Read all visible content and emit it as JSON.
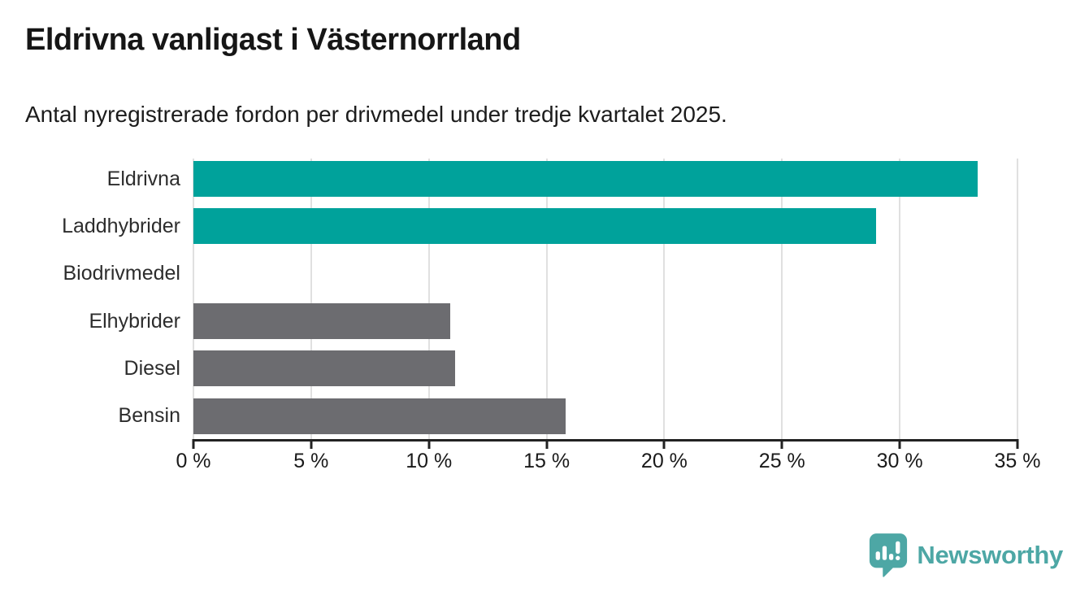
{
  "header": {
    "title": "Eldrivna vanligast i Västernorrland",
    "subtitle": "Antal nyregistrerade fordon per drivmedel under tredje kvartalet 2025."
  },
  "chart_data": {
    "type": "bar",
    "orientation": "horizontal",
    "title": "Eldrivna vanligast i Västernorrland",
    "subtitle": "Antal nyregistrerade fordon per drivmedel under tredje kvartalet 2025.",
    "categories": [
      "Eldrivna",
      "Laddhybrider",
      "Biodrivmedel",
      "Elhybrider",
      "Diesel",
      "Bensin"
    ],
    "values": [
      33.3,
      29.0,
      0.0,
      10.9,
      11.1,
      15.8
    ],
    "unit": "%",
    "xlabel": "",
    "ylabel": "",
    "xlim": [
      0,
      35
    ],
    "ticks": [
      0,
      5,
      10,
      15,
      20,
      25,
      30,
      35
    ],
    "tick_labels": [
      "0 %",
      "5 %",
      "10 %",
      "15 %",
      "20 %",
      "25 %",
      "30 %",
      "35 %"
    ],
    "grid": true,
    "legend": "none",
    "bar_colors": [
      "#00a29b",
      "#00a29b",
      "#00a29b",
      "#6c6c70",
      "#6c6c70",
      "#6c6c70"
    ],
    "highlight_color": "#00a29b",
    "default_color": "#6c6c70",
    "gridline_color": "#e0e0e0",
    "axis_color": "#222222"
  },
  "footer": {
    "brand": "Newsworthy",
    "brand_color": "#4da7a5",
    "logo_icon": "newsworthy-speech-bubble-barchart-icon"
  }
}
